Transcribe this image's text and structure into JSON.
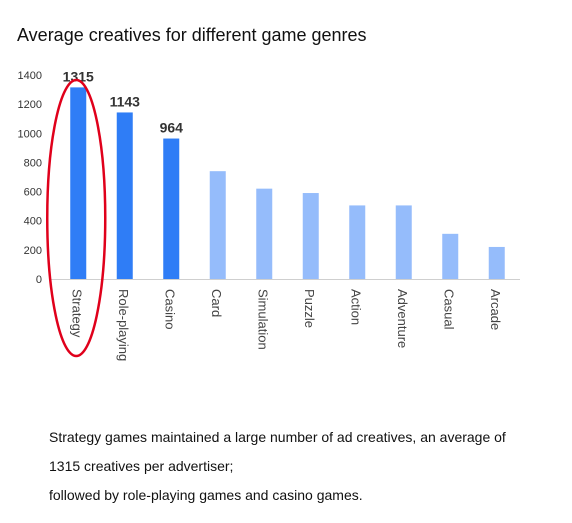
{
  "chart_data": {
    "type": "bar",
    "title": "Average creatives for different game genres",
    "xlabel": "",
    "ylabel": "",
    "categories": [
      "Strategy",
      "Role-playing",
      "Casino",
      "Card",
      "Simulation",
      "Puzzle",
      "Action",
      "Adventure",
      "Casual",
      "Arcade"
    ],
    "values": [
      1315,
      1143,
      964,
      740,
      620,
      590,
      505,
      505,
      310,
      220
    ],
    "data_labels": [
      "1315",
      "1143",
      "964",
      "",
      "",
      "",
      "",
      "",
      "",
      ""
    ],
    "ylim": [
      0,
      1400
    ],
    "yticks": [
      0,
      200,
      400,
      600,
      800,
      1000,
      1200,
      1400
    ],
    "highlight_colors": {
      "strong": "#2f7df6",
      "light": "#95bcfb",
      "annotation": "#e0001b"
    },
    "highlighted_count": 3,
    "annotation": "red-ellipse-around-first-bar",
    "grid": false
  },
  "caption": {
    "line1": "Strategy games maintained a large number of ad creatives, an average of",
    "line2": "1315 creatives per advertiser;",
    "line3": "followed by role-playing games and casino games."
  }
}
